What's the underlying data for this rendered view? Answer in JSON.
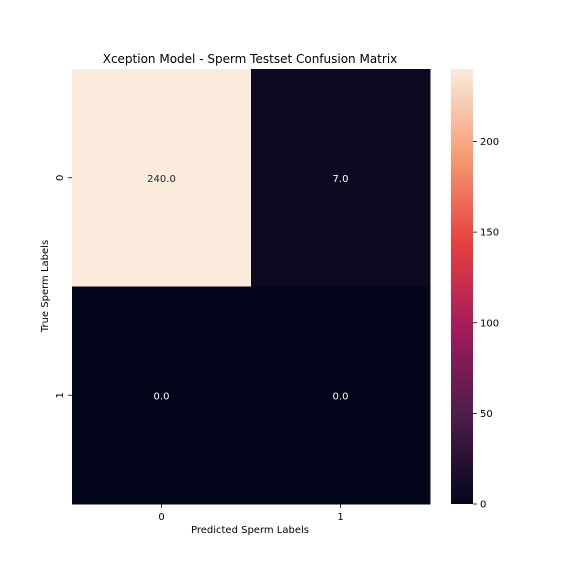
{
  "chart_data": {
    "type": "heatmap",
    "title": "Xception Model - Sperm Testset Confusion Matrix",
    "xlabel": "Predicted Sperm Labels",
    "ylabel": "True Sperm Labels",
    "x_categories": [
      "0",
      "1"
    ],
    "y_categories": [
      "0",
      "1"
    ],
    "values": [
      [
        240.0,
        7.0
      ],
      [
        0.0,
        0.0
      ]
    ],
    "cell_labels": [
      [
        "240.0",
        "7.0"
      ],
      [
        "0.0",
        "0.0"
      ]
    ],
    "colorbar": {
      "vmin": 0,
      "vmax": 240,
      "ticks": [
        0,
        50,
        100,
        150,
        200
      ],
      "tick_labels": [
        "0",
        "50",
        "100",
        "150",
        "200"
      ]
    },
    "colormap": "rocket",
    "grid": false
  }
}
